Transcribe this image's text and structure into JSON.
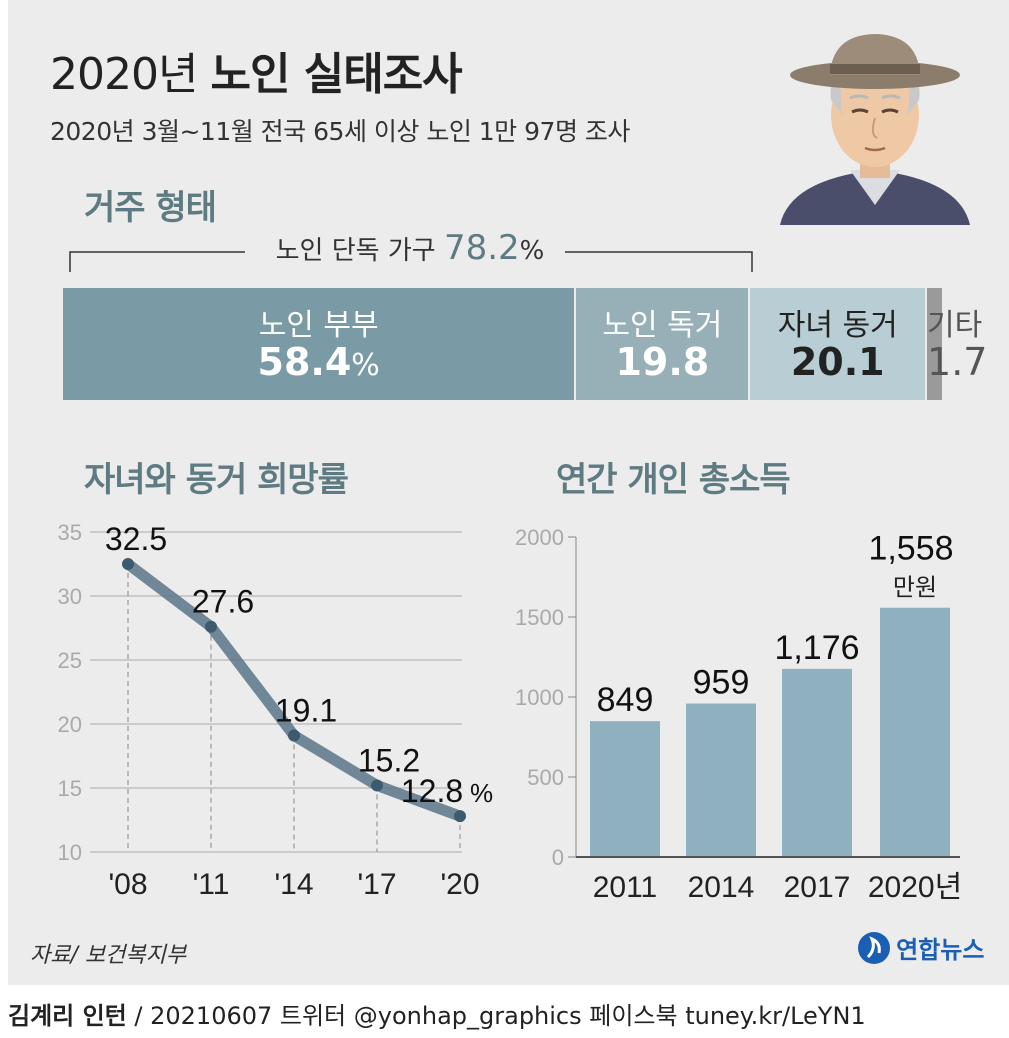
{
  "header": {
    "title_year": "2020년",
    "title_main": "노인 실태조사",
    "subtitle": "2020년 3월~11월 전국 65세 이상 노인 1만 97명 조사"
  },
  "residence": {
    "heading": "거주 형태",
    "bracket_label": "노인 단독 가구",
    "bracket_value": "78.2",
    "bracket_unit": "%",
    "segments": [
      {
        "label": "노인 부부",
        "value": 58.4,
        "value_text": "58.4",
        "unit": "%",
        "color": "#7a9ba6",
        "text_color": "#ffffff"
      },
      {
        "label": "노인 독거",
        "value": 19.8,
        "value_text": "19.8",
        "unit": "",
        "color": "#97b0b8",
        "text_color": "#ffffff"
      },
      {
        "label": "자녀 동거",
        "value": 20.1,
        "value_text": "20.1",
        "unit": "",
        "color": "#b8cdd4",
        "text_color": "#222222"
      },
      {
        "label": "기타",
        "value": 1.7,
        "value_text": "1.7",
        "unit": "",
        "color": "#9a9a9a",
        "text_color": "#555555"
      }
    ]
  },
  "line_section": {
    "heading": "자녀와 동거 희망률"
  },
  "bar_section": {
    "heading": "연간 개인 총소득"
  },
  "chart_data": [
    {
      "type": "line",
      "title": "자녀와 동거 희망률",
      "x": [
        "'08",
        "'11",
        "'14",
        "'17",
        "'20"
      ],
      "values": [
        32.5,
        27.6,
        19.1,
        15.2,
        12.8
      ],
      "labels": [
        "32.5",
        "27.6",
        "19.1",
        "15.2",
        "12.8"
      ],
      "unit": "%",
      "ylim": [
        10,
        35
      ],
      "yticks": [
        10,
        15,
        20,
        25,
        30,
        35
      ],
      "grid": true,
      "color": "#5a7588"
    },
    {
      "type": "bar",
      "title": "연간 개인 총소득",
      "categories": [
        "2011",
        "2014",
        "2017",
        "2020년"
      ],
      "values": [
        849,
        959,
        1176,
        1558
      ],
      "labels": [
        "849",
        "959",
        "1,176",
        "1,558"
      ],
      "unit": "만원",
      "ylim": [
        0,
        2000
      ],
      "yticks": [
        0,
        500,
        1000,
        1500,
        2000
      ],
      "color": "#8fb0bf"
    }
  ],
  "source": "자료/ 보건복지부",
  "logo": "연합뉴스",
  "footer": {
    "author": "김계리 인턴",
    "credits": " / 20210607 트위터 @yonhap_graphics  페이스북 tuney.kr/LeYN1"
  }
}
